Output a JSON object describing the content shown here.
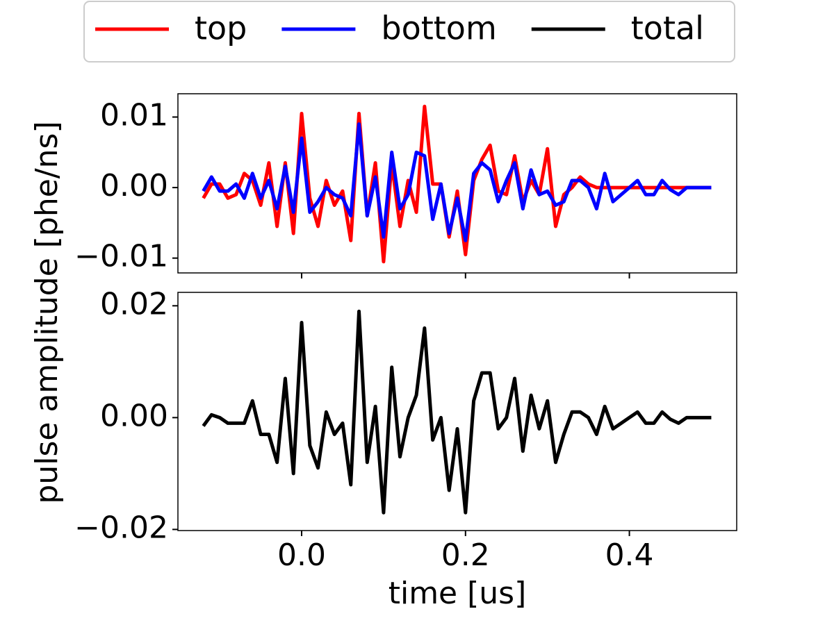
{
  "chart_data": [
    {
      "type": "line",
      "x": [
        -0.12,
        -0.11,
        -0.1,
        -0.09,
        -0.08,
        -0.07,
        -0.06,
        -0.05,
        -0.04,
        -0.03,
        -0.02,
        -0.01,
        0,
        0.01,
        0.02,
        0.03,
        0.04,
        0.05,
        0.06,
        0.07,
        0.08,
        0.09,
        0.1,
        0.11,
        0.12,
        0.13,
        0.14,
        0.15,
        0.16,
        0.17,
        0.18,
        0.19,
        0.2,
        0.21,
        0.22,
        0.23,
        0.24,
        0.25,
        0.26,
        0.27,
        0.28,
        0.29,
        0.3,
        0.31,
        0.32,
        0.33,
        0.34,
        0.35,
        0.36,
        0.37,
        0.38,
        0.39,
        0.4,
        0.41,
        0.42,
        0.43,
        0.44,
        0.45,
        0.46,
        0.47,
        0.48,
        0.49,
        0.5
      ],
      "series": [
        {
          "name": "top",
          "color": "#ff0000",
          "values": [
            -0.0015,
            0.0005,
            0.0005,
            -0.0015,
            -0.001,
            0.002,
            0.001,
            -0.0025,
            0.0035,
            -0.0055,
            0.0035,
            -0.0065,
            0.0105,
            -0.0015,
            -0.0055,
            0.001,
            -0.0025,
            -0.0005,
            -0.0075,
            0.0105,
            -0.004,
            0.0035,
            -0.0105,
            0.0035,
            -0.0055,
            0.001,
            -0.0035,
            0.0115,
            0.0005,
            0.0005,
            -0.007,
            -0.0005,
            -0.0095,
            0.001,
            0.004,
            0.006,
            -0.0005,
            -0.001,
            0.0045,
            -0.002,
            0.001,
            -0.001,
            0.0055,
            -0.0055,
            -0.001,
            0,
            0.0015,
            0.0005,
            0,
            0,
            0,
            0,
            0,
            0,
            0,
            0,
            0,
            0,
            0,
            0,
            0,
            0,
            0
          ]
        },
        {
          "name": "bottom",
          "color": "#0000ff",
          "values": [
            -0.0005,
            0.0015,
            -0.0005,
            -0.0005,
            0.0005,
            -0.0015,
            0.002,
            -0.0015,
            0.001,
            -0.003,
            0.003,
            -0.0035,
            0.007,
            -0.0035,
            -0.002,
            0,
            -0.001,
            -0.0015,
            -0.004,
            0.009,
            -0.004,
            0.0015,
            -0.007,
            0.005,
            -0.003,
            -0.001,
            0.005,
            0.0045,
            -0.0045,
            0.0005,
            -0.0065,
            -0.0015,
            -0.0075,
            0.002,
            0.0035,
            0.0025,
            -0.002,
            0.001,
            0.0035,
            -0.003,
            0.0025,
            -0.001,
            -0.0005,
            -0.0025,
            -0.002,
            0.001,
            0.001,
            0,
            -0.003,
            0.002,
            -0.002,
            -0.001,
            0,
            0.001,
            -0.001,
            -0.001,
            0.001,
            -0.0003,
            -0.001,
            0,
            0,
            0,
            0
          ]
        }
      ],
      "xlim": [
        -0.151,
        0.531
      ],
      "xticks": [
        0,
        0.2,
        0.4
      ],
      "ylim": [
        -0.0121,
        0.0133
      ],
      "yticks": [
        {
          "value": -0.01,
          "label": "−0.01"
        },
        {
          "value": 0,
          "label": "0.00"
        },
        0.01
      ],
      "ylabel": "pulse amplitude [phe/ns]",
      "legend": "upper center"
    },
    {
      "type": "line",
      "x": [
        -0.12,
        -0.11,
        -0.1,
        -0.09,
        -0.08,
        -0.07,
        -0.06,
        -0.05,
        -0.04,
        -0.03,
        -0.02,
        -0.01,
        0,
        0.01,
        0.02,
        0.03,
        0.04,
        0.05,
        0.06,
        0.07,
        0.08,
        0.09,
        0.1,
        0.11,
        0.12,
        0.13,
        0.14,
        0.15,
        0.16,
        0.17,
        0.18,
        0.19,
        0.2,
        0.21,
        0.22,
        0.23,
        0.24,
        0.25,
        0.26,
        0.27,
        0.28,
        0.29,
        0.3,
        0.31,
        0.32,
        0.33,
        0.34,
        0.35,
        0.36,
        0.37,
        0.38,
        0.39,
        0.4,
        0.41,
        0.42,
        0.43,
        0.44,
        0.45,
        0.46,
        0.47,
        0.48,
        0.49,
        0.5
      ],
      "series": [
        {
          "name": "total",
          "color": "#000000",
          "values": [
            -0.0015,
            0.0005,
            0,
            -0.001,
            -0.001,
            -0.001,
            0.003,
            -0.003,
            -0.003,
            -0.008,
            0.007,
            -0.01,
            0.017,
            -0.005,
            -0.009,
            0.001,
            -0.003,
            -0.001,
            -0.012,
            0.019,
            -0.008,
            0.002,
            -0.017,
            0.009,
            -0.007,
            0,
            0.004,
            0.016,
            -0.004,
            0,
            -0.013,
            -0.002,
            -0.017,
            0.003,
            0.008,
            0.008,
            -0.002,
            0,
            0.007,
            -0.006,
            0.004,
            -0.002,
            0.003,
            -0.008,
            -0.003,
            0.001,
            0.001,
            0,
            -0.003,
            0.002,
            -0.002,
            -0.001,
            0,
            0.001,
            -0.001,
            -0.001,
            0.001,
            -0.0003,
            -0.001,
            0,
            0,
            0,
            0
          ]
        }
      ],
      "xlim": [
        -0.151,
        0.531
      ],
      "xticks": [
        {
          "value": 0,
          "label": "0.0"
        },
        {
          "value": 0.2,
          "label": "0.2"
        },
        {
          "value": 0.4,
          "label": "0.4"
        }
      ],
      "ylim": [
        -0.0202,
        0.0224
      ],
      "yticks": [
        {
          "value": -0.02,
          "label": "−0.02"
        },
        {
          "value": 0,
          "label": "0.00"
        },
        0.02
      ],
      "xlabel": "time [us]"
    }
  ]
}
